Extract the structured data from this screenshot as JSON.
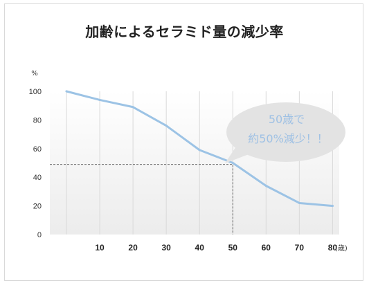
{
  "chart_data": {
    "type": "line",
    "title": "加齢によるセラミド量の減少率",
    "ylabel": "%",
    "xunit": "(歳)",
    "x": [
      0,
      10,
      20,
      30,
      40,
      50,
      60,
      70,
      80
    ],
    "xticks": [
      "10",
      "20",
      "30",
      "40",
      "50",
      "60",
      "70",
      "80"
    ],
    "xlim": [
      -5,
      82
    ],
    "ylim": [
      0,
      100
    ],
    "yticks": [
      "0",
      "20",
      "40",
      "60",
      "80",
      "100"
    ],
    "series": [
      {
        "values": [
          100,
          94,
          89,
          76,
          59,
          50,
          34,
          22,
          20
        ]
      }
    ],
    "reference_point": {
      "x": 50,
      "y": 49
    },
    "annotation": {
      "lines": [
        "50歳で",
        "約50%減少！！"
      ]
    },
    "grid": "vertical",
    "colors": {
      "line": "#9cc3e5",
      "bubble": "#e3e3e3",
      "bubble_text": "#9fc1e4",
      "grid": "#d9d9d9"
    }
  }
}
